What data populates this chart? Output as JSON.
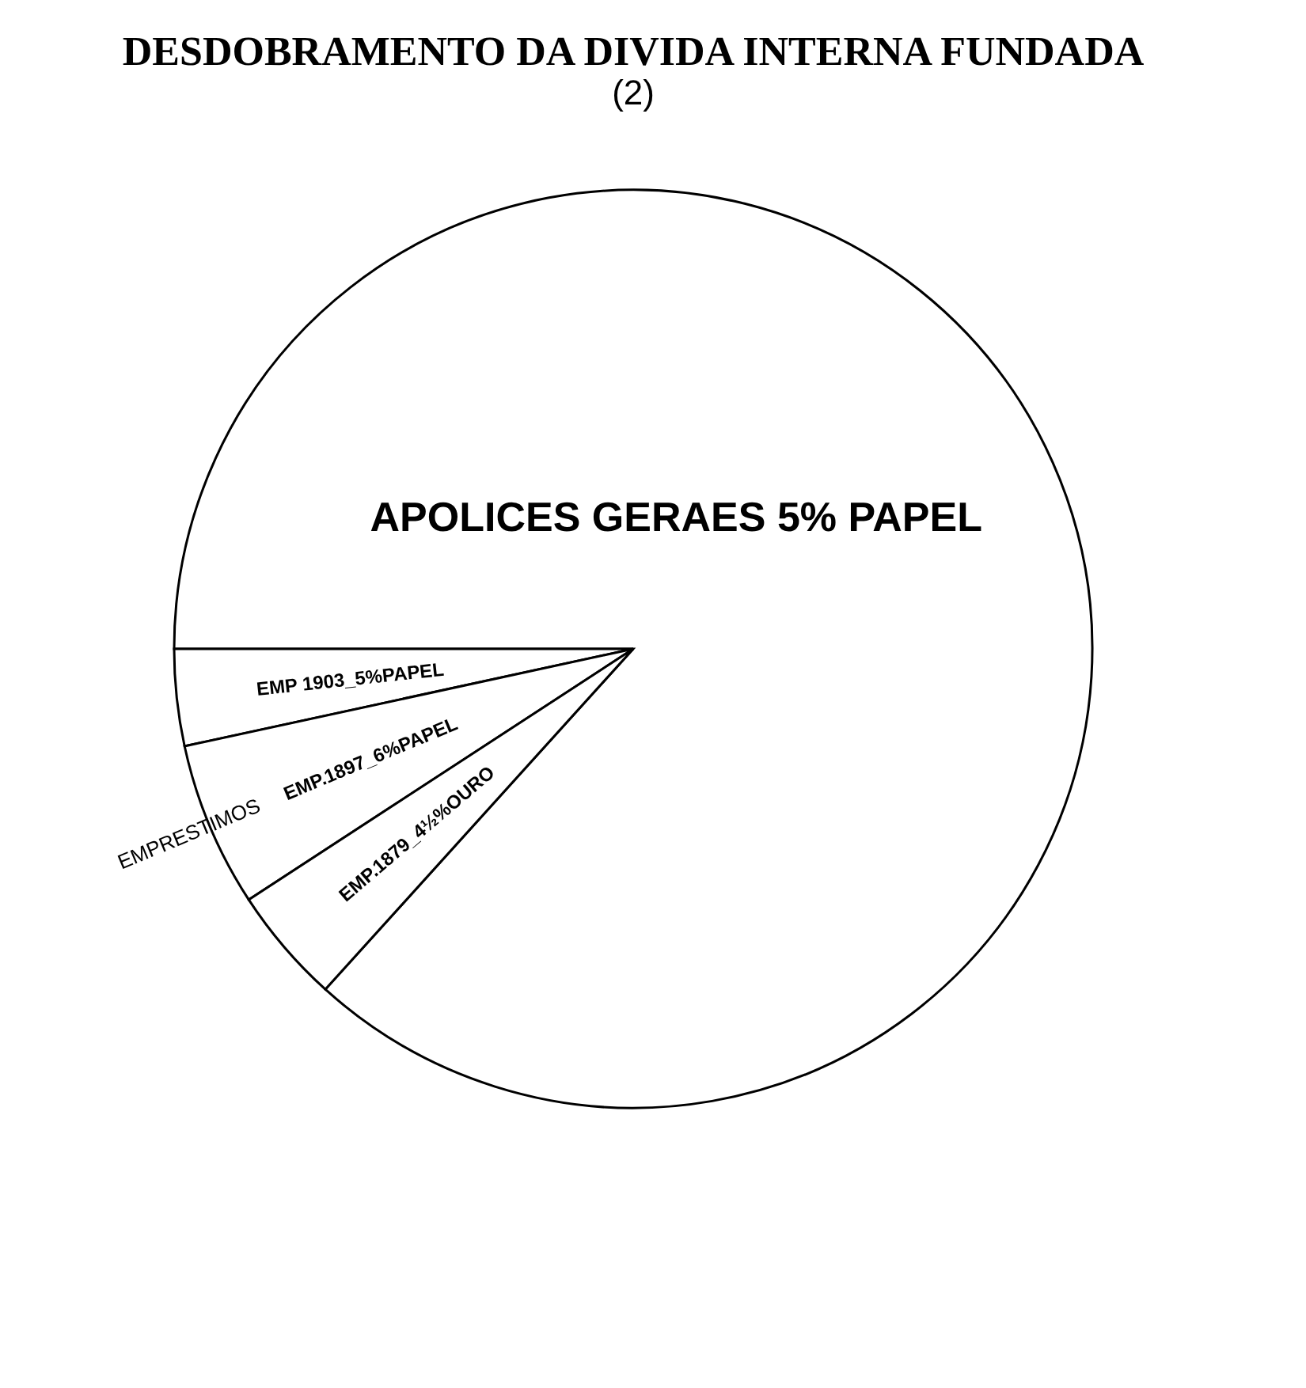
{
  "chart_data": {
    "type": "pie",
    "title": "DESDOBRAMENTO DA DIVIDA INTERNA FUNDADA",
    "subtitle": "(2)",
    "categories": [
      "APOLICES GERAES 5% PAPEL",
      "EMP 1903_5%PAPEL",
      "EMP.1897_6%PAPEL",
      "EMP.1879_4½%OURO"
    ],
    "values": [
      86.7,
      3.4,
      5.8,
      4.1
    ],
    "colors": [
      "#ffffff",
      "#ffffff",
      "#ffffff",
      "#ffffff"
    ],
    "annotations": [
      "EMPRESTIMOS"
    ],
    "legend": false
  }
}
